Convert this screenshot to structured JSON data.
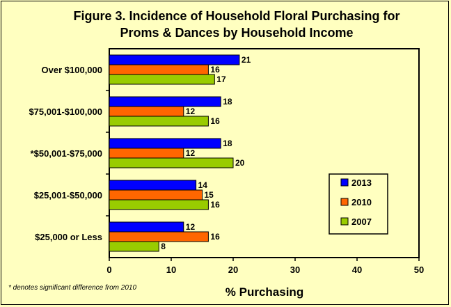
{
  "chart_data": {
    "type": "bar",
    "orientation": "horizontal",
    "title": "Figure 3.  Incidence of Household Floral Purchasing for",
    "subtitle": "Proms & Dances by Household Income",
    "xlabel": "% Purchasing",
    "ylabel": "",
    "xlim": [
      0,
      50
    ],
    "xticks": [
      0,
      10,
      20,
      30,
      40,
      50
    ],
    "grid": false,
    "legend_position": "right",
    "categories": [
      "Over $100,000",
      "$75,001-$100,000",
      "*$50,001-$75,000",
      "$25,001-$50,000",
      "$25,000  or Less"
    ],
    "series": [
      {
        "name": "2013",
        "color": "#0000FF",
        "values": [
          21,
          18,
          18,
          14,
          12
        ]
      },
      {
        "name": "2010",
        "color": "#FF6600",
        "values": [
          16,
          12,
          12,
          15,
          16
        ]
      },
      {
        "name": "2007",
        "color": "#99CC00",
        "values": [
          17,
          16,
          20,
          16,
          8
        ]
      }
    ],
    "footnote": "* denotes significant difference from 2010"
  }
}
